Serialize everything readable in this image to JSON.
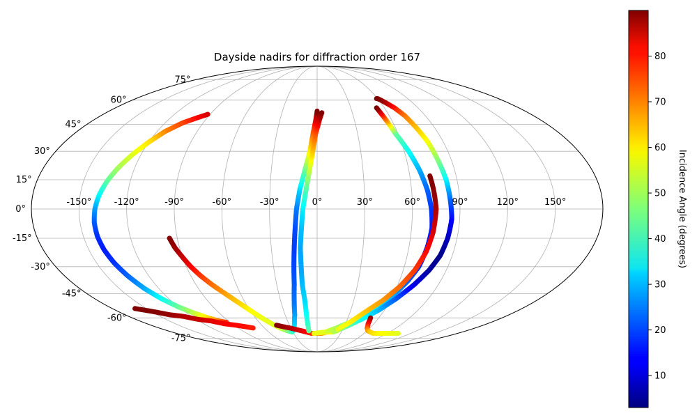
{
  "chart_data": {
    "type": "scatter",
    "title": "Dayside nadirs for diffraction order 167",
    "projection": "mollweide",
    "grid": true,
    "lon_ticks": [
      -150,
      -120,
      -90,
      -60,
      -30,
      0,
      30,
      60,
      90,
      120,
      150
    ],
    "lat_ticks": [
      -75,
      -60,
      -45,
      -30,
      -15,
      0,
      15,
      30,
      45,
      60,
      75
    ],
    "lon_tick_labels": [
      "-150°",
      "-120°",
      "-90°",
      "-60°",
      "-30°",
      "0°",
      "30°",
      "60°",
      "90°",
      "120°",
      "150°"
    ],
    "lat_tick_labels": [
      "-75°",
      "-60°",
      "-45°",
      "-30°",
      "-15°",
      "0°",
      "15°",
      "30°",
      "45°",
      "60°",
      "75°"
    ],
    "colorbar": {
      "label": "Incidence Angle (degrees)",
      "colormap": "jet",
      "range": [
        3,
        90
      ],
      "ticks": [
        10,
        20,
        30,
        40,
        50,
        60,
        70,
        80
      ],
      "tick_labels": [
        "10",
        "20",
        "30",
        "40",
        "50",
        "60",
        "70",
        "80"
      ]
    },
    "series": [
      {
        "lon": [
          -92,
          -98,
          -106,
          -114,
          -120,
          -126,
          -131,
          -135,
          -138,
          -140,
          -141,
          -141,
          -140,
          -138,
          -135,
          -131,
          -126,
          -120,
          -113,
          -106,
          -100,
          -94
        ],
        "lat": [
          51,
          49,
          46,
          41,
          35,
          28,
          21,
          14,
          7,
          0,
          -7,
          -14,
          -21,
          -28,
          -35,
          -42,
          -48,
          -53,
          -57,
          -60,
          -62,
          -63
        ],
        "incidence": [
          83,
          80,
          74,
          68,
          60,
          55,
          50,
          44,
          36,
          28,
          22,
          18,
          16,
          18,
          22,
          28,
          36,
          44,
          52,
          60,
          68,
          76
        ]
      },
      {
        "lon": [
          -160,
          -148,
          -138,
          -128,
          -118,
          -108,
          -98,
          -88,
          -80,
          -73
        ],
        "lat": [
          -54,
          -56,
          -58,
          -59,
          -61,
          -62,
          -64,
          -65,
          -66,
          -67
        ],
        "incidence": [
          90,
          90,
          88,
          86,
          84,
          82,
          80,
          79,
          78,
          77
        ]
      },
      {
        "lon": [
          -95,
          -93,
          -90,
          -87,
          -83,
          -78,
          -72,
          -66,
          -60,
          -54,
          -48,
          -42,
          -36,
          -31,
          -27,
          -24,
          -21,
          -19,
          -17,
          -16,
          -15,
          -14,
          -13,
          -11,
          -8,
          -5,
          -3,
          -1,
          0
        ],
        "lat": [
          -15,
          -20,
          -25,
          -30,
          -35,
          -40,
          -45,
          -50,
          -55,
          -60,
          -64,
          -67,
          -69,
          -70,
          -68,
          -64,
          -58,
          -50,
          -40,
          -30,
          -20,
          -10,
          0,
          10,
          20,
          30,
          40,
          48,
          53
        ],
        "incidence": [
          90,
          88,
          84,
          80,
          75,
          70,
          66,
          62,
          58,
          56,
          55,
          54,
          48,
          42,
          36,
          32,
          28,
          24,
          22,
          20,
          19,
          20,
          24,
          32,
          44,
          58,
          70,
          82,
          90
        ]
      },
      {
        "lon": [
          -44,
          -38,
          -31,
          -25,
          -19,
          -13,
          -7,
          0,
          6,
          12,
          18,
          24
        ],
        "lat": [
          -65,
          -66,
          -67,
          -68,
          -69,
          -70,
          -71,
          -71,
          -71,
          -70,
          -70,
          -69
        ],
        "incidence": [
          90,
          88,
          86,
          84,
          82,
          80,
          76,
          72,
          66,
          60,
          57,
          55
        ]
      },
      {
        "lon": [
          -10,
          -10,
          -10,
          -11,
          -11,
          -11,
          -10,
          -9,
          -7,
          -5,
          -3,
          -1,
          2,
          4
        ],
        "lat": [
          -69,
          -60,
          -50,
          -40,
          -30,
          -20,
          -10,
          0,
          10,
          20,
          30,
          40,
          48,
          52
        ],
        "incidence": [
          44,
          38,
          33,
          30,
          28,
          28,
          30,
          34,
          42,
          52,
          62,
          72,
          84,
          90
        ]
      },
      {
        "lon": [
          -4,
          10,
          22,
          34,
          45,
          54,
          61,
          66,
          70,
          72,
          73,
          72,
          70,
          67,
          63,
          58,
          53
        ],
        "lat": [
          -71,
          -70,
          -67,
          -63,
          -58,
          -52,
          -45,
          -38,
          -30,
          -20,
          -10,
          0,
          10,
          20,
          30,
          40,
          55
        ],
        "incidence": [
          56,
          55,
          50,
          45,
          38,
          34,
          28,
          22,
          18,
          16,
          16,
          18,
          22,
          28,
          36,
          44,
          90
        ]
      },
      {
        "lon": [
          20,
          32,
          44,
          55,
          64,
          72,
          78,
          82,
          84,
          85,
          84,
          83,
          81,
          79,
          76,
          73,
          69,
          65,
          62,
          60,
          59
        ],
        "lat": [
          -70,
          -66,
          -61,
          -55,
          -48,
          -40,
          -32,
          -24,
          -15,
          -5,
          5,
          15,
          25,
          35,
          43,
          50,
          55,
          58,
          60,
          61,
          61
        ],
        "incidence": [
          52,
          45,
          38,
          30,
          22,
          12,
          6,
          4,
          8,
          14,
          22,
          34,
          46,
          56,
          62,
          68,
          76,
          84,
          88,
          90,
          90
        ]
      },
      {
        "lon": [
          24,
          34,
          44,
          54,
          62,
          68,
          72,
          74,
          75,
          74,
          73
        ],
        "lat": [
          -68,
          -63,
          -56,
          -49,
          -41,
          -32,
          -22,
          -12,
          0,
          10,
          17
        ],
        "incidence": [
          55,
          58,
          62,
          66,
          70,
          74,
          78,
          82,
          86,
          89,
          90
        ]
      },
      {
        "lon": [
          52,
          54,
          57,
          61,
          66,
          72,
          79,
          87,
          96,
          104
        ],
        "lat": [
          -60,
          -64,
          -67,
          -69,
          -70,
          -71,
          -71,
          -71,
          -71,
          -71
        ],
        "incidence": [
          90,
          80,
          72,
          66,
          62,
          60,
          58,
          57,
          56,
          55
        ]
      }
    ]
  }
}
